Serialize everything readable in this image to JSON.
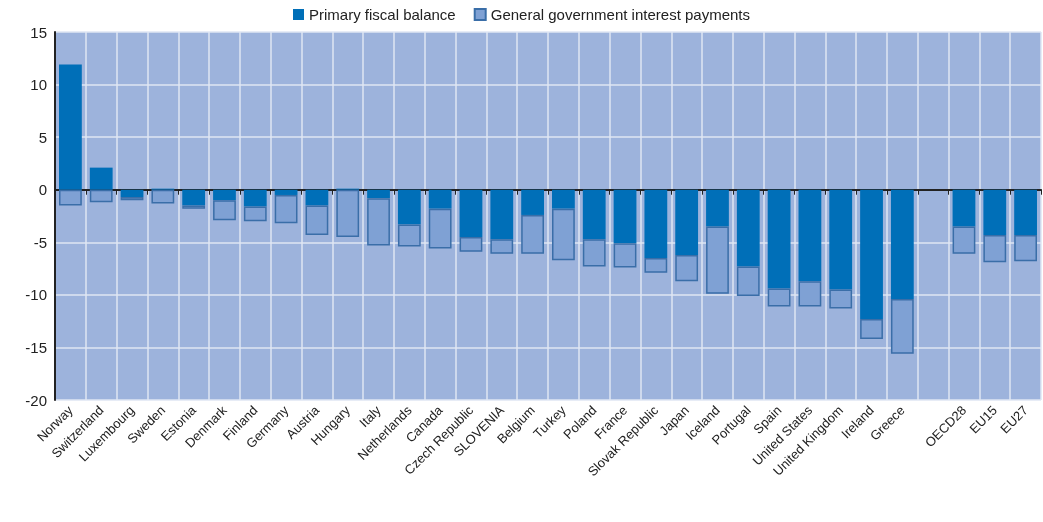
{
  "chart_data": {
    "type": "bar",
    "stacked": true,
    "categories": [
      "Norway",
      "Switzerland",
      "Luxembourg",
      "Sweden",
      "Estonia",
      "Denmark",
      "Finland",
      "Germany",
      "Austria",
      "Hungary",
      "Italy",
      "Netherlands",
      "Canada",
      "Czech Republic",
      "SLOVENIA",
      "Belgium",
      "Turkey",
      "Poland",
      "France",
      "Slovak Republic",
      "Japan",
      "Iceland",
      "Portugal",
      "Spain",
      "United States",
      "United Kingdom",
      "Ireland",
      "Greece",
      null,
      "OECD28",
      "EU15",
      "EU27"
    ],
    "series": [
      {
        "name": "Primary fiscal balance",
        "color": "#006fb8",
        "values": [
          11.9,
          2.1,
          -0.7,
          0.1,
          -1.5,
          -1.0,
          -1.6,
          -0.5,
          -1.5,
          0.1,
          -0.8,
          -3.3,
          -1.8,
          -4.5,
          -4.7,
          -2.4,
          -1.8,
          -4.7,
          -5.1,
          -6.5,
          -6.2,
          -3.5,
          -7.3,
          -9.4,
          -8.7,
          -9.5,
          -12.3,
          -10.4,
          null,
          -3.5,
          -4.3,
          -4.3
        ]
      },
      {
        "name": "General government interest payments",
        "color": "#7fa1d4",
        "values": [
          -1.5,
          -1.2,
          -0.3,
          -1.3,
          -0.3,
          -1.9,
          -1.4,
          -2.7,
          -2.8,
          -4.5,
          -4.5,
          -2.1,
          -3.8,
          -1.4,
          -1.4,
          -3.7,
          -4.9,
          -2.6,
          -2.3,
          -1.4,
          -2.5,
          -6.4,
          -2.8,
          -1.7,
          -2.4,
          -1.8,
          -1.9,
          -5.2,
          null,
          -2.6,
          -2.6,
          -2.5
        ]
      }
    ],
    "ylim": [
      -20,
      15
    ],
    "yticks": [
      -20,
      -15,
      -10,
      -5,
      0,
      5,
      10,
      15
    ],
    "grid": true,
    "legend": "top"
  }
}
